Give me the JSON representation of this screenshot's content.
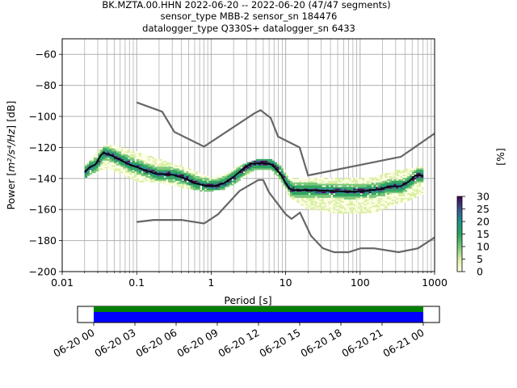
{
  "chart_data": [
    {
      "type": "heatmap",
      "title_lines": [
        "BK.MZTA.00.HHN   2022-06-20 -- 2022-06-20  (47/47 segments)",
        "sensor_type MBB-2 sensor_sn 184476",
        "datalogger_type Q330S+ datalogger_sn 6433"
      ],
      "xlabel": "Period [s]",
      "ylabel_prefix": "Power [",
      "ylabel_unit": "m²/s⁴/Hz",
      "ylabel_suffix": "] [dB]",
      "x_scale": "log",
      "xlim": [
        0.01,
        1000
      ],
      "ylim": [
        -200,
        -50
      ],
      "grid": true,
      "x_ticks": [
        {
          "value": 0.01,
          "label": "0.01"
        },
        {
          "value": 0.1,
          "label": "0.1"
        },
        {
          "value": 1,
          "label": "1"
        },
        {
          "value": 10,
          "label": "10"
        },
        {
          "value": 100,
          "label": "100"
        },
        {
          "value": 1000,
          "label": "1000"
        }
      ],
      "y_ticks": [
        {
          "value": -60,
          "label": "−60"
        },
        {
          "value": -80,
          "label": "−80"
        },
        {
          "value": -100,
          "label": "−100"
        },
        {
          "value": -120,
          "label": "−120"
        },
        {
          "value": -140,
          "label": "−140"
        },
        {
          "value": -160,
          "label": "−160"
        },
        {
          "value": -180,
          "label": "−180"
        },
        {
          "value": -200,
          "label": "−200"
        }
      ],
      "colorbar": {
        "label": "[%]",
        "range": [
          0,
          30
        ],
        "ticks": [
          {
            "value": 0,
            "label": "0"
          },
          {
            "value": 5,
            "label": "5"
          },
          {
            "value": 10,
            "label": "10"
          },
          {
            "value": 15,
            "label": "15"
          },
          {
            "value": 20,
            "label": "20"
          },
          {
            "value": 25,
            "label": "25"
          },
          {
            "value": 30,
            "label": "30"
          }
        ],
        "colors": [
          "#ffffe5",
          "#d9f0a3",
          "#78c679",
          "#2ca25f",
          "#21908d",
          "#3b528b",
          "#440154"
        ]
      },
      "noise_model_high": [
        [
          0.1,
          -91
        ],
        [
          0.22,
          -97
        ],
        [
          0.32,
          -110
        ],
        [
          0.8,
          -119.5
        ],
        [
          3.8,
          -98
        ],
        [
          4.6,
          -96
        ],
        [
          6.3,
          -101
        ],
        [
          7.9,
          -113
        ],
        [
          15.4,
          -120
        ],
        [
          20,
          -138
        ],
        [
          354,
          -126
        ],
        [
          1000,
          -111
        ]
      ],
      "noise_model_low": [
        [
          0.1,
          -168
        ],
        [
          0.17,
          -166.7
        ],
        [
          0.4,
          -166.7
        ],
        [
          0.8,
          -169
        ],
        [
          1.24,
          -163
        ],
        [
          2.4,
          -148
        ],
        [
          4.3,
          -141
        ],
        [
          5,
          -141
        ],
        [
          6,
          -149
        ],
        [
          10,
          -163
        ],
        [
          12,
          -166
        ],
        [
          15.6,
          -162
        ],
        [
          21.9,
          -177
        ],
        [
          31.6,
          -185
        ],
        [
          45,
          -187.5
        ],
        [
          70,
          -187.5
        ],
        [
          101,
          -185
        ],
        [
          154,
          -185
        ],
        [
          328,
          -187.5
        ],
        [
          600,
          -185
        ],
        [
          1000,
          -178
        ]
      ],
      "mean_curve": [
        [
          0.02,
          -136
        ],
        [
          0.023,
          -133
        ],
        [
          0.028,
          -131
        ],
        [
          0.033,
          -125
        ],
        [
          0.036,
          -123.5
        ],
        [
          0.045,
          -125
        ],
        [
          0.06,
          -128
        ],
        [
          0.08,
          -131
        ],
        [
          0.12,
          -134
        ],
        [
          0.18,
          -137
        ],
        [
          0.3,
          -137.5
        ],
        [
          0.45,
          -140
        ],
        [
          0.6,
          -143
        ],
        [
          0.8,
          -144.5
        ],
        [
          1.1,
          -145
        ],
        [
          1.5,
          -143
        ],
        [
          2,
          -139
        ],
        [
          2.8,
          -133
        ],
        [
          3.4,
          -130.5
        ],
        [
          5,
          -130
        ],
        [
          6.5,
          -131
        ],
        [
          8.5,
          -137
        ],
        [
          10,
          -143
        ],
        [
          11.2,
          -146.5
        ],
        [
          13,
          -147.5
        ],
        [
          20,
          -147.5
        ],
        [
          40,
          -148
        ],
        [
          70,
          -148.5
        ],
        [
          120,
          -148
        ],
        [
          180,
          -147
        ],
        [
          250,
          -145
        ],
        [
          350,
          -145
        ],
        [
          450,
          -142
        ],
        [
          550,
          -138
        ],
        [
          700,
          -138
        ]
      ],
      "ppsd_spread": [
        [
          0.02,
          -139,
          -132
        ],
        [
          0.03,
          -136,
          -122
        ],
        [
          0.04,
          -134,
          -118
        ],
        [
          0.06,
          -137,
          -120
        ],
        [
          0.1,
          -142,
          -123
        ],
        [
          0.2,
          -143,
          -128
        ],
        [
          0.4,
          -146,
          -132
        ],
        [
          0.7,
          -148,
          -137
        ],
        [
          1,
          -148,
          -140
        ],
        [
          1.5,
          -147,
          -137
        ],
        [
          2.5,
          -140,
          -131
        ],
        [
          4,
          -134,
          -128
        ],
        [
          6.5,
          -135,
          -128
        ],
        [
          9,
          -144,
          -134
        ],
        [
          11,
          -152,
          -140
        ],
        [
          20,
          -160,
          -140
        ],
        [
          60,
          -163,
          -140
        ],
        [
          150,
          -162,
          -139
        ],
        [
          300,
          -157,
          -135
        ],
        [
          700,
          -150,
          -132
        ]
      ],
      "timeline": {
        "ticks": [
          "06-20 00",
          "06-20 03",
          "06-20 06",
          "06-20 09",
          "06-20 12",
          "06-20 15",
          "06-20 18",
          "06-20 21",
          "06-21 00"
        ],
        "data_color": "#008000",
        "gap_color": "#0000ff"
      }
    }
  ]
}
